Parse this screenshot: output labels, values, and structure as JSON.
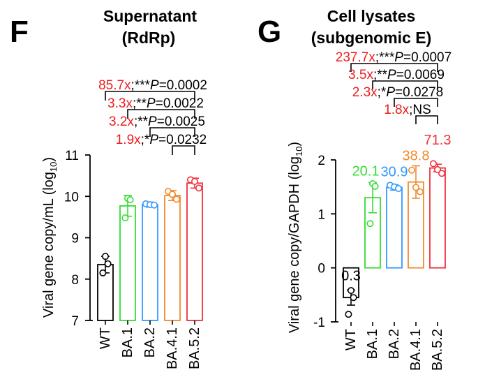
{
  "colors": {
    "WT": "#000000",
    "BA.1": "#33dd33",
    "BA.2": "#3399ff",
    "BA.4.1": "#f08a2c",
    "BA.5.2": "#f0303a",
    "annotation_red": "#ee1c1c"
  },
  "chart_data": [
    {
      "type": "bar",
      "panel_letter": "F",
      "title": "Supernatant",
      "subtitle": "(RdRp)",
      "xlabel": "",
      "ylabel": "Viral gene copy/mL (log",
      "ylabel_sub": "10",
      "ylabel_end": ")",
      "ylim": [
        7,
        11
      ],
      "yticks": [
        "7",
        "8",
        "9",
        "10",
        "11"
      ],
      "categories": [
        "WT",
        "BA.1",
        "BA.2",
        "BA.4.1",
        "BA.5.2"
      ],
      "values": [
        8.35,
        9.77,
        9.8,
        10.02,
        10.32
      ],
      "error": [
        0.2,
        0.25,
        0.06,
        0.12,
        0.12
      ],
      "points": [
        [
          8.55,
          8.37,
          8.15
        ],
        [
          9.95,
          9.92,
          9.48
        ],
        [
          9.82,
          9.8,
          9.79
        ],
        [
          10.12,
          10.05,
          9.93
        ],
        [
          10.4,
          10.36,
          10.2
        ]
      ],
      "bracket_text": [
        {
          "fold": "85.7x",
          "sig": ";***",
          "p": "P",
          "val": "=0.0002"
        },
        {
          "fold": "3.3x",
          "sig": ";**",
          "p": "P",
          "val": "=0.0022"
        },
        {
          "fold": "3.2x",
          "sig": ";**",
          "p": "P",
          "val": "=0.0025"
        },
        {
          "fold": "1.9x",
          "sig": ";*",
          "p": "P",
          "val": "=0.0232"
        }
      ],
      "bracket_pairs": [
        [
          0,
          4
        ],
        [
          1,
          4
        ],
        [
          2,
          4
        ],
        [
          3,
          4
        ]
      ]
    },
    {
      "type": "bar",
      "panel_letter": "G",
      "title": "Cell lysates",
      "subtitle": "(subgenomic E)",
      "xlabel": "",
      "ylabel": "Viral gene copy/GAPDH (log",
      "ylabel_sub": "10",
      "ylabel_end": ")",
      "ylim": [
        -1,
        2
      ],
      "yticks": [
        "-1",
        "0",
        "1",
        "2"
      ],
      "categories": [
        "WT",
        "BA.1",
        "BA.2",
        "BA.4.1",
        "BA.5.2"
      ],
      "values": [
        -0.55,
        1.3,
        1.49,
        1.59,
        1.85
      ],
      "error": [
        0.14,
        0.28,
        0.05,
        0.3,
        0.07
      ],
      "points": [
        [
          -0.42,
          -0.55,
          -0.86
        ],
        [
          1.56,
          1.51,
          0.82
        ],
        [
          1.53,
          1.5,
          1.47
        ],
        [
          1.81,
          1.49,
          1.41
        ],
        [
          1.93,
          1.82,
          1.75
        ]
      ],
      "bar_labels": [
        "0.3",
        "20.1",
        "30.9",
        "38.8",
        "71.3"
      ],
      "bracket_text": [
        {
          "fold": "237.7x",
          "sig": ";***",
          "p": "P",
          "val": "=0.0007"
        },
        {
          "fold": "3.5x",
          "sig": ";**",
          "p": "P",
          "val": "=0.0069"
        },
        {
          "fold": "2.3x",
          "sig": ";*",
          "p": "P",
          "val": "=0.0278"
        },
        {
          "fold": "1.8x",
          "sig": ";NS",
          "p": "",
          "val": ""
        }
      ],
      "bracket_pairs": [
        [
          0,
          4
        ],
        [
          1,
          4
        ],
        [
          2,
          4
        ],
        [
          3,
          4
        ]
      ]
    }
  ]
}
